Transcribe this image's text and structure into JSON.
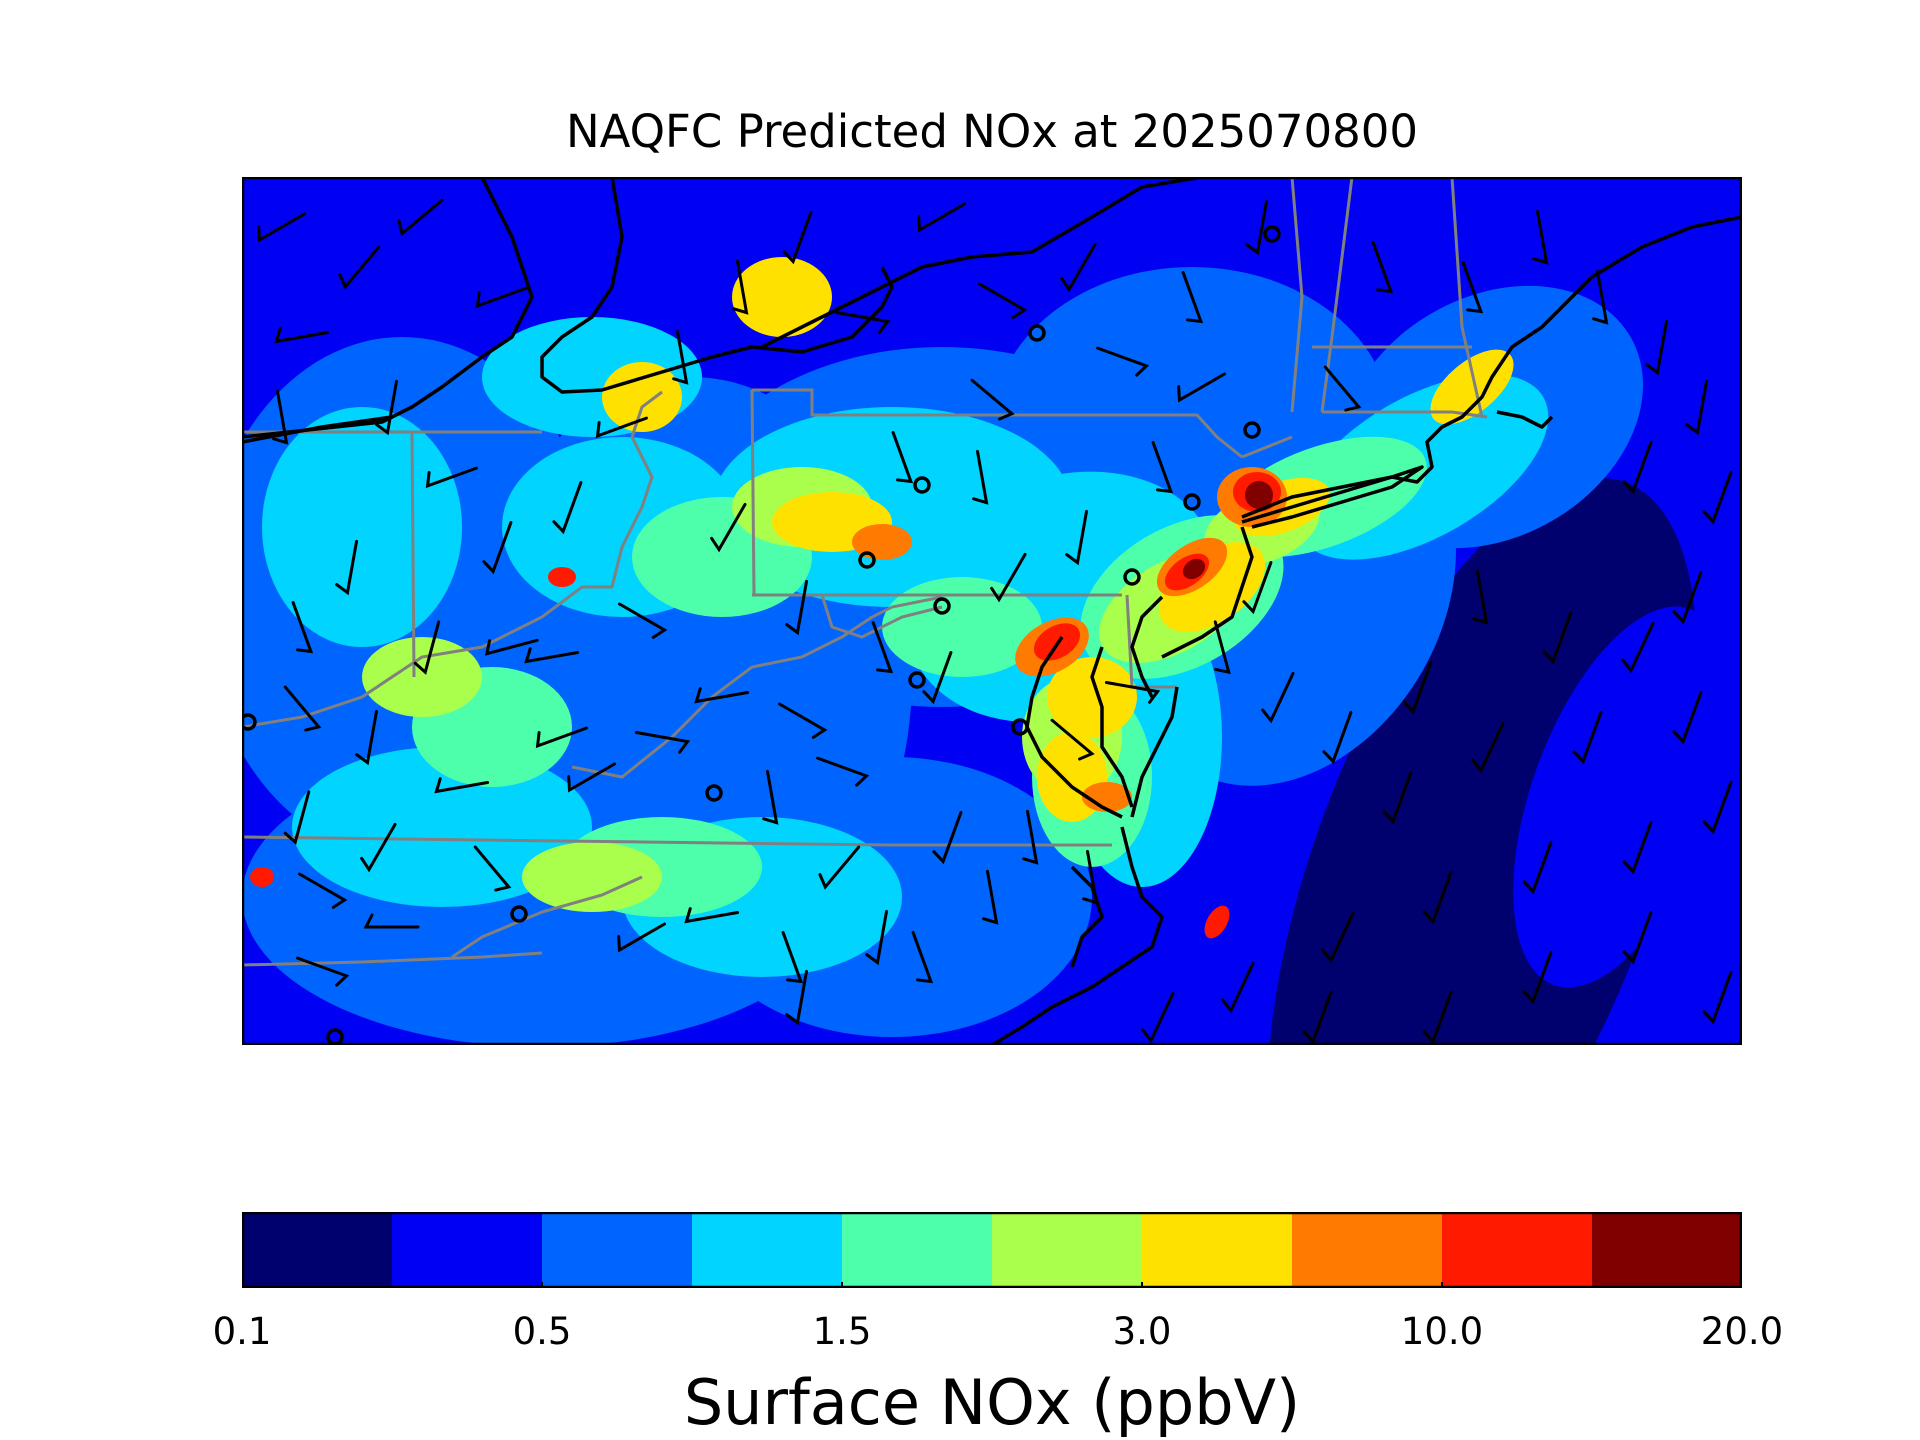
{
  "title": "NAQFC Predicted NOx at 2025070800",
  "colorbar": {
    "label": "Surface NOx (ppbV)",
    "colors": [
      "#00006e",
      "#0000f2",
      "#0064ff",
      "#00d4ff",
      "#4dffaa",
      "#aaff4d",
      "#ffe100",
      "#ff7a00",
      "#ff1a00",
      "#800000"
    ],
    "tick_labels": [
      "0.1",
      "0.5",
      "1.5",
      "3.0",
      "10.0",
      "20.0"
    ]
  },
  "map": {
    "coastline_color": "#000000",
    "state_border_color": "#808080",
    "station_marker": "open-circle",
    "wind_barb_color": "#000000"
  }
}
